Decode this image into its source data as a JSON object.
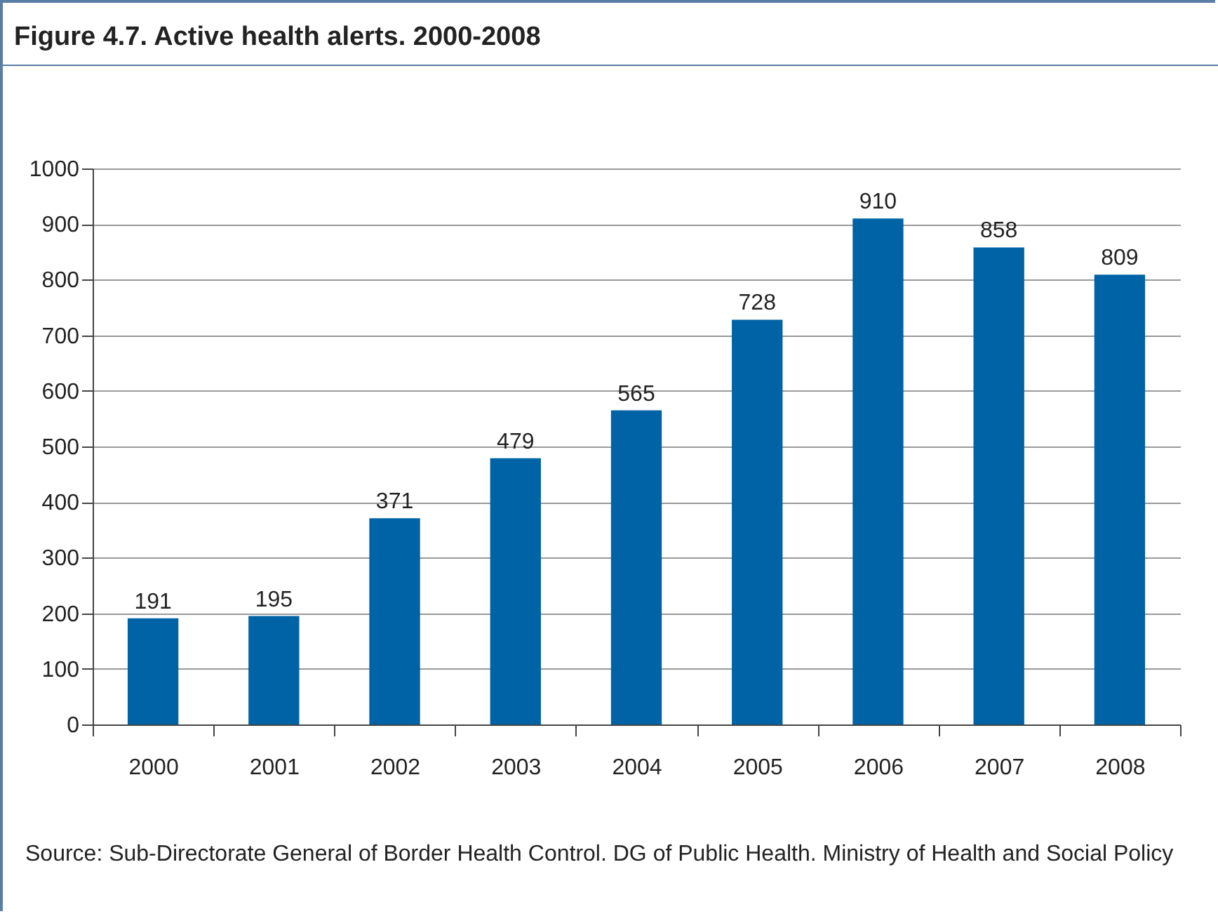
{
  "chart_data": {
    "type": "bar",
    "title": "Figure 4.7. Active health alerts. 2000-2008",
    "categories": [
      "2000",
      "2001",
      "2002",
      "2003",
      "2004",
      "2005",
      "2006",
      "2007",
      "2008"
    ],
    "values": [
      191,
      195,
      371,
      479,
      565,
      728,
      910,
      858,
      809
    ],
    "color": "#0063a6",
    "data_labels": true,
    "ylim": [
      0,
      1000
    ],
    "yticks": [
      0,
      100,
      200,
      300,
      400,
      500,
      600,
      700,
      800,
      900,
      1000
    ],
    "grid": "y",
    "annotations": [
      "Source: Sub-Directorate General of Border Health Control. DG of Public Health. Ministry of Health and Social Policy"
    ]
  }
}
